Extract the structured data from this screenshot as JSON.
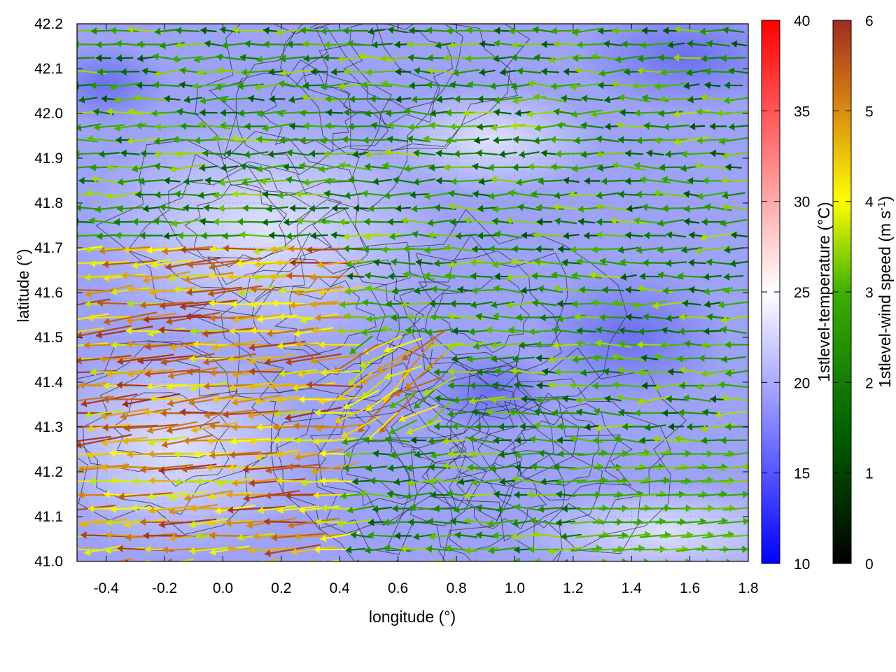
{
  "chart_data": {
    "type": "vector-field",
    "xlabel": "longitude (°)",
    "ylabel": "latitude (°)",
    "xlim": [
      -0.5,
      1.8
    ],
    "ylim": [
      41.0,
      42.2
    ],
    "x_ticks": [
      "-0.4",
      "-0.2",
      "0.0",
      "0.2",
      "0.4",
      "0.6",
      "0.8",
      "1.0",
      "1.2",
      "1.4",
      "1.6",
      "1.8"
    ],
    "y_ticks": [
      "41.0",
      "41.1",
      "41.2",
      "41.3",
      "41.4",
      "41.5",
      "41.6",
      "41.7",
      "41.8",
      "41.9",
      "42.0",
      "42.1",
      "42.2"
    ],
    "grid": true,
    "background_field": {
      "label": "1stlevel-temperature (°C)",
      "range": [
        10,
        40
      ],
      "ticks": [
        "10",
        "15",
        "20",
        "25",
        "30",
        "35",
        "40"
      ],
      "colormap": [
        "#0000ff",
        "#ffffff",
        "#ff0000"
      ],
      "typical_values": [
        17,
        20
      ]
    },
    "vector_field": {
      "label_prefix": "1stlevel-wind speed (m s",
      "label_sup": "-1",
      "label_suffix": ")",
      "range": [
        0,
        6
      ],
      "ticks": [
        "0",
        "1",
        "2",
        "3",
        "4",
        "5",
        "6"
      ],
      "colormap": [
        "#000000",
        "#006400",
        "#3cb000",
        "#ffff00",
        "#d98c10",
        "#a02a20"
      ],
      "dominant_direction": "westward",
      "southeast_direction": "eastward"
    },
    "contours": {
      "present": true,
      "color": "#222222"
    }
  }
}
